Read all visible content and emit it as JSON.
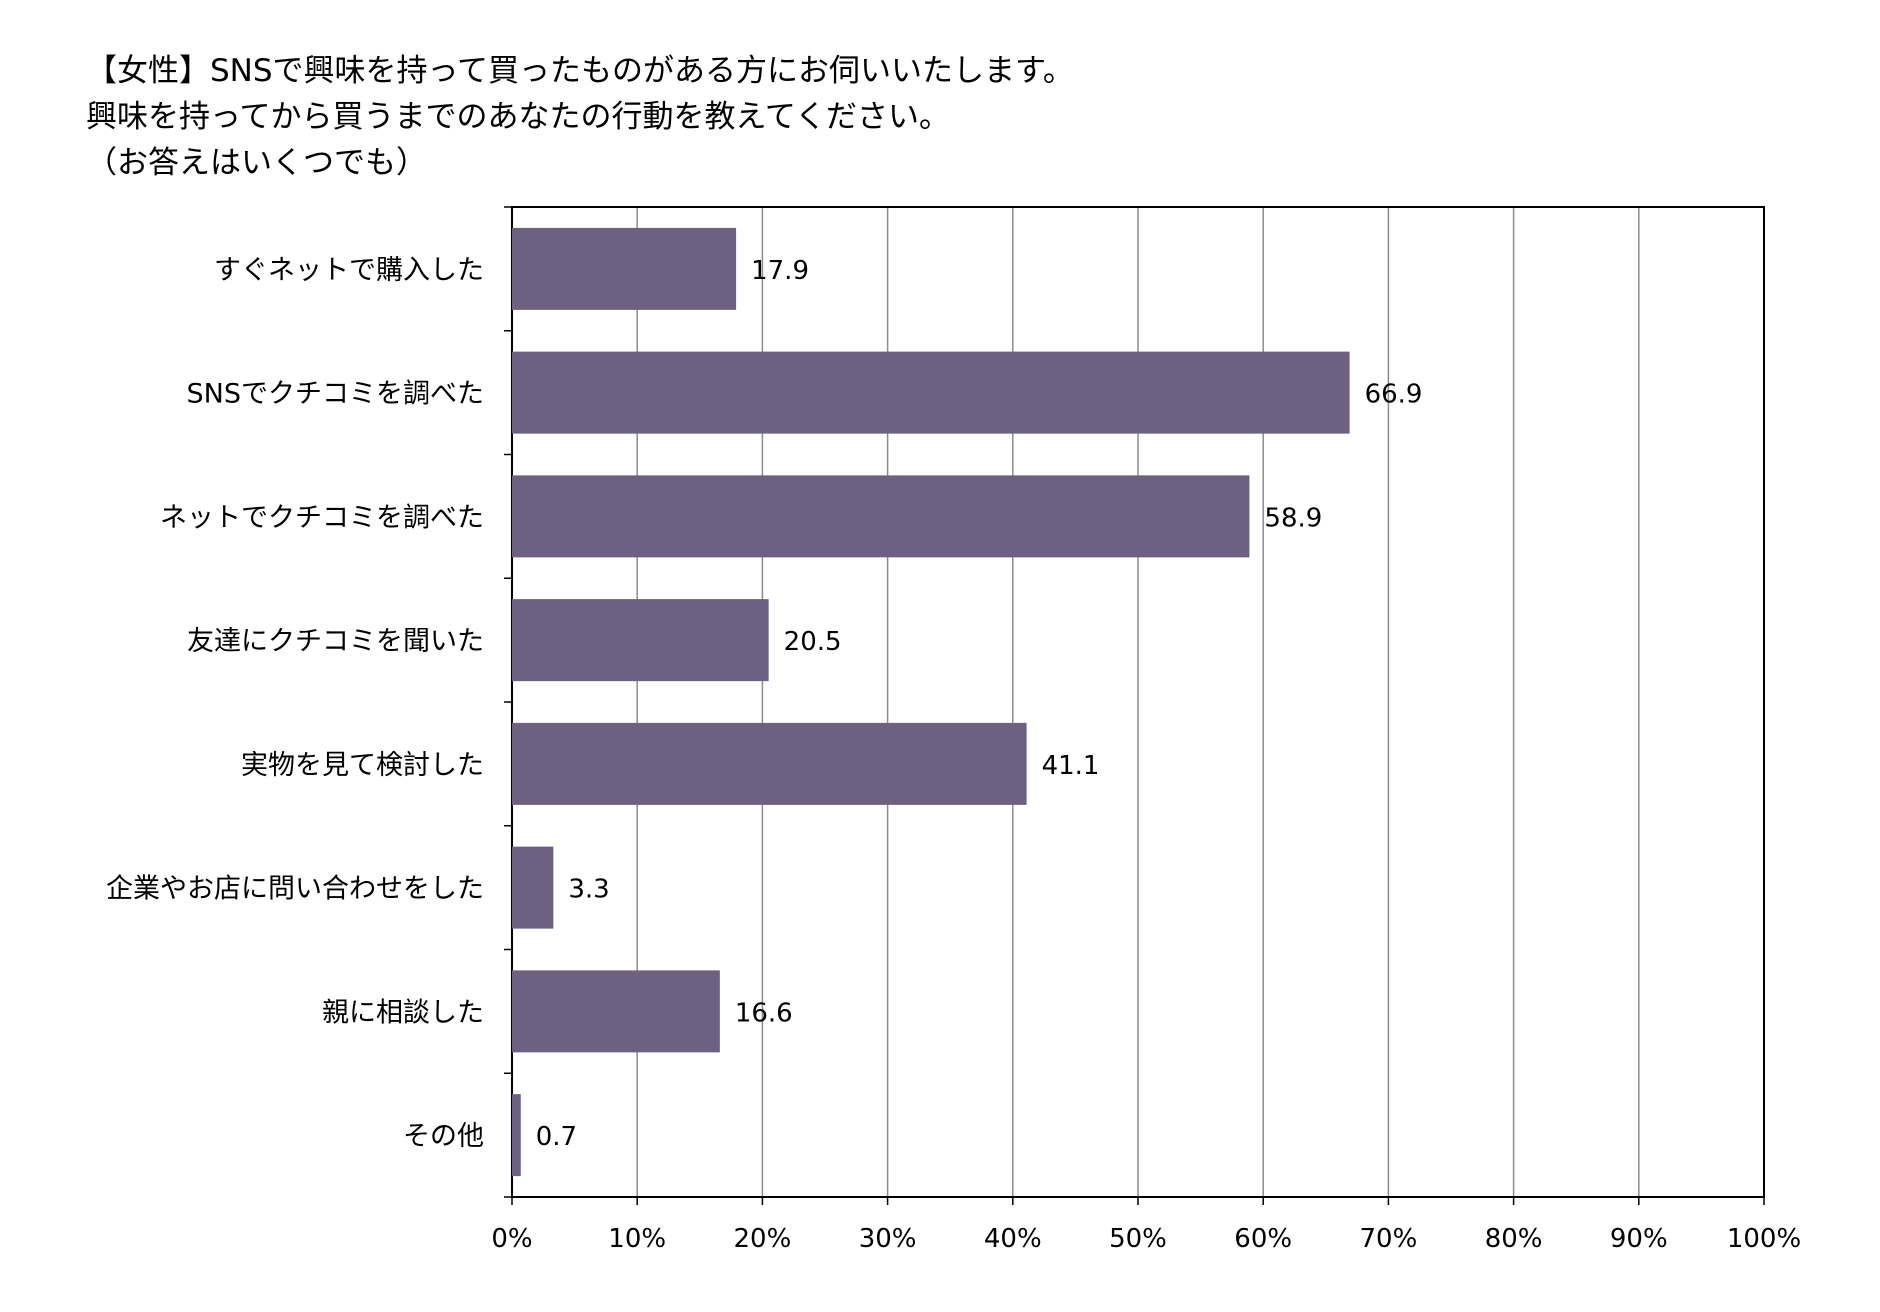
{
  "chart_data": {
    "type": "bar",
    "orientation": "horizontal",
    "title_lines": [
      "【女性】SNSで興味を持って買ったものがある方にお伺いいたします。",
      "興味を持ってから買うまでのあなたの行動を教えてください。",
      "（お答えはいくつでも）"
    ],
    "categories": [
      "すぐネットで購入した",
      "SNSでクチコミを調べた",
      "ネットでクチコミを調べた",
      "友達にクチコミを聞いた",
      "実物を見て検討した",
      "企業やお店に問い合わせをした",
      "親に相談した",
      "その他"
    ],
    "values": [
      17.9,
      66.9,
      58.9,
      20.5,
      41.1,
      3.3,
      16.6,
      0.7
    ],
    "value_labels": [
      "17.9",
      "66.9",
      "58.9",
      "20.5",
      "41.1",
      "3.3",
      "16.6",
      "0.7"
    ],
    "xlim": [
      0,
      100
    ],
    "x_ticks": [
      "0%",
      "10%",
      "20%",
      "30%",
      "40%",
      "50%",
      "60%",
      "70%",
      "80%",
      "90%",
      "100%"
    ],
    "grid": true,
    "bar_color": "#6d6080"
  }
}
